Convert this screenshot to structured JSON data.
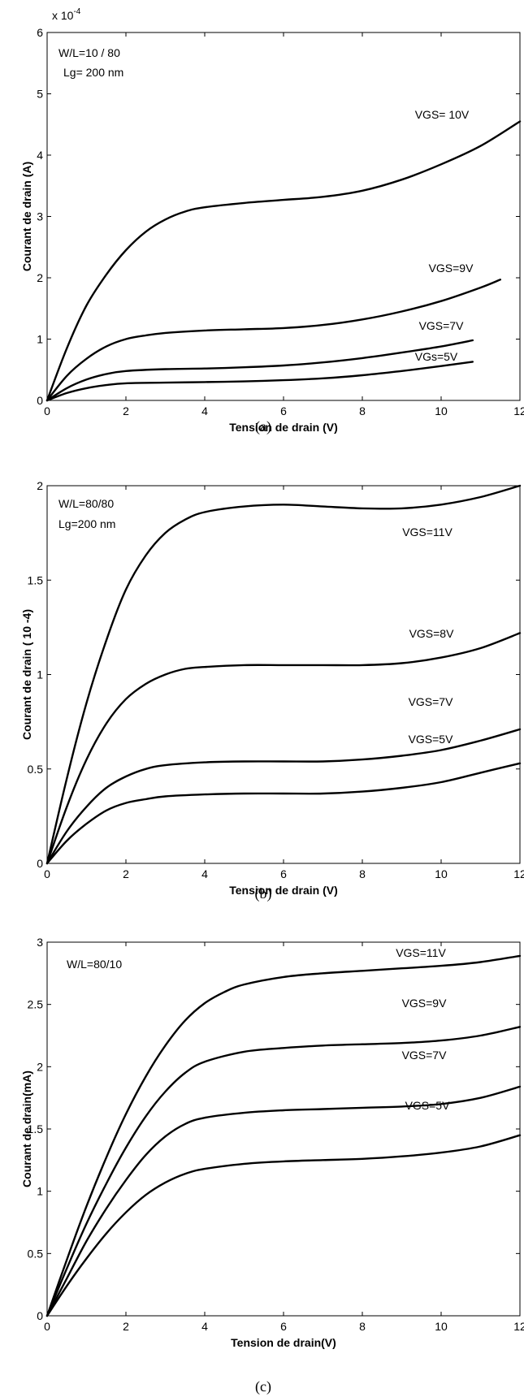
{
  "chart_data": [
    {
      "type": "line",
      "caption": "(a)",
      "xlabel": "Tension de drain (V)",
      "ylabel": "Courant de drain (A)",
      "exponent_label": "x 10",
      "exponent_power": "-4",
      "xlim": [
        0,
        12
      ],
      "ylim": [
        0,
        6
      ],
      "xticks": [
        0,
        2,
        4,
        6,
        8,
        10,
        12
      ],
      "yticks": [
        0,
        1,
        2,
        3,
        4,
        5,
        6
      ],
      "annotations": [
        "W/L=10 / 80",
        "Lg= 200 nm"
      ],
      "series": [
        {
          "label": "VGS= 10V",
          "x": [
            0,
            0.5,
            1,
            1.5,
            2,
            2.5,
            3,
            3.5,
            4,
            5,
            6,
            7,
            8,
            9,
            10,
            11,
            12
          ],
          "y": [
            0,
            0.85,
            1.55,
            2.05,
            2.45,
            2.75,
            2.95,
            3.08,
            3.15,
            3.22,
            3.27,
            3.32,
            3.42,
            3.6,
            3.85,
            4.15,
            4.55
          ]
        },
        {
          "label": "VGS=9V",
          "x": [
            0,
            0.5,
            1,
            1.5,
            2,
            2.5,
            3,
            4,
            5,
            6,
            7,
            8,
            9,
            10,
            11,
            11.5
          ],
          "y": [
            0,
            0.4,
            0.68,
            0.88,
            1.0,
            1.06,
            1.1,
            1.14,
            1.16,
            1.18,
            1.23,
            1.32,
            1.45,
            1.62,
            1.84,
            1.97
          ]
        },
        {
          "label": "VGS=7V",
          "x": [
            0,
            0.5,
            1,
            1.5,
            2,
            3,
            4,
            5,
            6,
            7,
            8,
            9,
            10,
            10.8
          ],
          "y": [
            0,
            0.2,
            0.34,
            0.43,
            0.48,
            0.51,
            0.52,
            0.54,
            0.57,
            0.62,
            0.69,
            0.78,
            0.88,
            0.98
          ]
        },
        {
          "label": "VGs=5V",
          "x": [
            0,
            0.5,
            1,
            1.5,
            2,
            3,
            4,
            5,
            6,
            7,
            8,
            9,
            10,
            10.8
          ],
          "y": [
            0,
            0.12,
            0.2,
            0.25,
            0.28,
            0.29,
            0.3,
            0.31,
            0.33,
            0.36,
            0.41,
            0.48,
            0.56,
            0.63
          ]
        }
      ]
    },
    {
      "type": "line",
      "caption": "(b)",
      "xlabel": "Tension de drain (V)",
      "ylabel": "Courant de drain ( 10 -4)",
      "xlim": [
        0,
        12
      ],
      "ylim": [
        0,
        2
      ],
      "xticks": [
        0,
        2,
        4,
        6,
        8,
        10,
        12
      ],
      "yticks": [
        0,
        0.5,
        1,
        1.5,
        2
      ],
      "annotations": [
        "W/L=80/80",
        "Lg=200 nm"
      ],
      "series": [
        {
          "label": "VGS=11V",
          "x": [
            0,
            0.5,
            1,
            1.5,
            2,
            2.5,
            3,
            3.5,
            4,
            5,
            6,
            7,
            8,
            9,
            10,
            11,
            12
          ],
          "y": [
            0,
            0.45,
            0.85,
            1.18,
            1.45,
            1.63,
            1.75,
            1.82,
            1.86,
            1.89,
            1.9,
            1.89,
            1.88,
            1.88,
            1.9,
            1.94,
            2.0
          ]
        },
        {
          "label": "VGS=8V",
          "x": [
            0,
            0.5,
            1,
            1.5,
            2,
            2.5,
            3,
            3.5,
            4,
            5,
            6,
            7,
            8,
            9,
            10,
            11,
            12
          ],
          "y": [
            0,
            0.3,
            0.55,
            0.74,
            0.87,
            0.95,
            1.0,
            1.03,
            1.04,
            1.05,
            1.05,
            1.05,
            1.05,
            1.06,
            1.09,
            1.14,
            1.22
          ]
        },
        {
          "label": "VGS=7V",
          "x": [
            0,
            0.5,
            1,
            1.5,
            2,
            2.5,
            3,
            4,
            5,
            6,
            7,
            8,
            9,
            10,
            11,
            12
          ],
          "y": [
            0,
            0.17,
            0.3,
            0.4,
            0.46,
            0.5,
            0.52,
            0.535,
            0.54,
            0.54,
            0.54,
            0.55,
            0.57,
            0.6,
            0.65,
            0.71
          ]
        },
        {
          "label": "VGS=5V",
          "x": [
            0,
            0.5,
            1,
            1.5,
            2,
            2.5,
            3,
            4,
            5,
            6,
            7,
            8,
            9,
            10,
            11,
            12
          ],
          "y": [
            0,
            0.12,
            0.21,
            0.28,
            0.32,
            0.34,
            0.355,
            0.365,
            0.37,
            0.37,
            0.37,
            0.38,
            0.4,
            0.43,
            0.48,
            0.53
          ]
        }
      ]
    },
    {
      "type": "line",
      "caption": "(c)",
      "xlabel": "Tension de drain(V)",
      "ylabel": "Courant de drain(mA)",
      "xlim": [
        0,
        12
      ],
      "ylim": [
        0,
        3
      ],
      "xticks": [
        0,
        2,
        4,
        6,
        8,
        10,
        12
      ],
      "yticks": [
        0,
        0.5,
        1,
        1.5,
        2,
        2.5,
        3
      ],
      "annotations": [
        "W/L=80/10"
      ],
      "series": [
        {
          "label": "VGS=11V",
          "x": [
            0,
            0.5,
            1,
            1.5,
            2,
            2.5,
            3,
            3.5,
            4,
            4.5,
            5,
            6,
            7,
            8,
            9,
            10,
            11,
            12
          ],
          "y": [
            0,
            0.45,
            0.88,
            1.27,
            1.62,
            1.92,
            2.17,
            2.37,
            2.51,
            2.6,
            2.66,
            2.72,
            2.75,
            2.77,
            2.79,
            2.81,
            2.84,
            2.89
          ]
        },
        {
          "label": "VGS=9V",
          "x": [
            0,
            0.5,
            1,
            1.5,
            2,
            2.5,
            3,
            3.5,
            4,
            5,
            6,
            7,
            8,
            9,
            10,
            11,
            12
          ],
          "y": [
            0,
            0.38,
            0.74,
            1.06,
            1.35,
            1.6,
            1.8,
            1.95,
            2.04,
            2.12,
            2.15,
            2.17,
            2.18,
            2.19,
            2.21,
            2.25,
            2.32
          ]
        },
        {
          "label": "VGS=7V",
          "x": [
            0,
            0.5,
            1,
            1.5,
            2,
            2.5,
            3,
            3.5,
            4,
            5,
            6,
            7,
            8,
            9,
            10,
            11,
            12
          ],
          "y": [
            0,
            0.3,
            0.6,
            0.86,
            1.09,
            1.29,
            1.44,
            1.54,
            1.59,
            1.63,
            1.65,
            1.66,
            1.67,
            1.68,
            1.7,
            1.75,
            1.84
          ]
        },
        {
          "label": "VGS=5V",
          "x": [
            0,
            0.5,
            1,
            1.5,
            2,
            2.5,
            3,
            3.5,
            4,
            5,
            6,
            7,
            8,
            9,
            10,
            11,
            12
          ],
          "y": [
            0,
            0.24,
            0.46,
            0.66,
            0.83,
            0.97,
            1.07,
            1.14,
            1.18,
            1.22,
            1.24,
            1.25,
            1.26,
            1.28,
            1.31,
            1.36,
            1.45
          ]
        }
      ]
    }
  ]
}
